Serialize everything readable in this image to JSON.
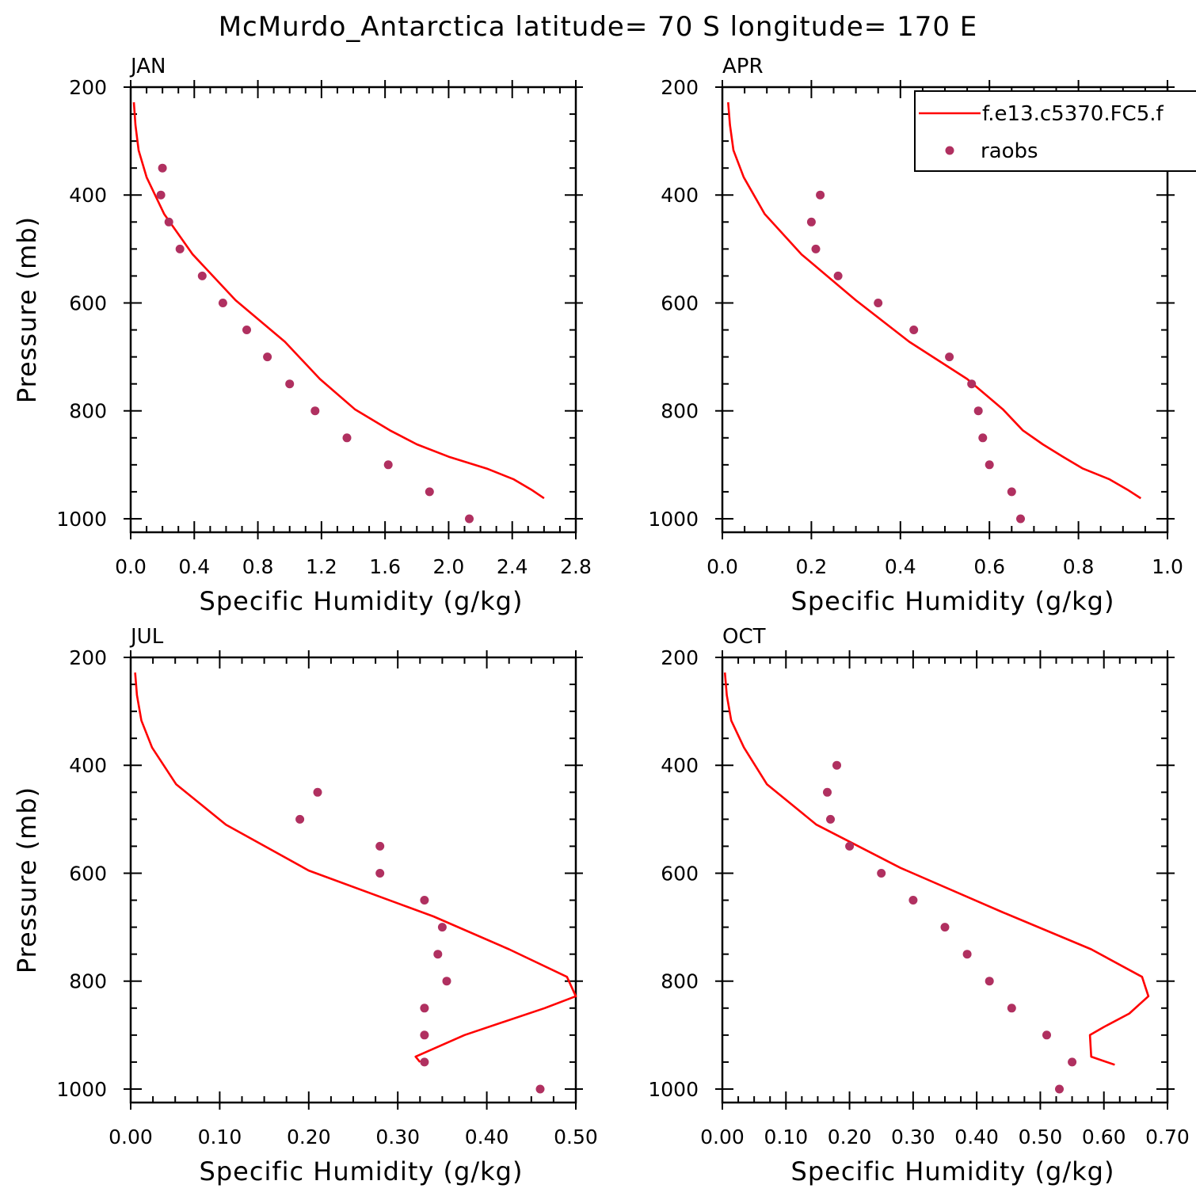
{
  "title": "McMurdo_Antarctica  latitude= 70 S longitude= 170 E",
  "colors": {
    "model": "#ff0000",
    "raobs": "#b03060",
    "axes": "#000000"
  },
  "legend": {
    "placement": "top-right of APR panel",
    "entries": [
      {
        "label": "f.e13.c5370.FC5.f",
        "style": "line"
      },
      {
        "label": "raobs",
        "style": "marker"
      }
    ]
  },
  "chart_data": [
    {
      "type": "line",
      "title": "JAN",
      "xlabel": "Specific Humidity (g/kg)",
      "ylabel": "Pressure (mb)",
      "xlim": [
        0,
        2.8
      ],
      "ylim": [
        1025,
        200
      ],
      "y_inverted": true,
      "xticks": [
        0.0,
        0.4,
        0.8,
        1.2,
        1.6,
        2.0,
        2.4,
        2.8
      ],
      "xtick_labels": [
        "0.0",
        "0.4",
        "0.8",
        "1.2",
        "1.6",
        "2.0",
        "2.4",
        "2.8"
      ],
      "yticks": [
        200,
        400,
        600,
        800,
        1000
      ],
      "ytick_labels": [
        "200",
        "400",
        "600",
        "800",
        "1000"
      ],
      "model": {
        "x": [
          0.02,
          0.03,
          0.05,
          0.1,
          0.21,
          0.39,
          0.66,
          0.97,
          1.19,
          1.41,
          1.63,
          1.8,
          2.0,
          2.24,
          2.41,
          2.52,
          2.6
        ],
        "y": [
          228,
          270,
          317,
          367,
          435,
          510,
          595,
          672,
          741,
          797,
          836,
          862,
          885,
          907,
          927,
          946,
          962
        ]
      },
      "raobs": {
        "x": [
          0.2,
          0.19,
          0.24,
          0.31,
          0.45,
          0.58,
          0.73,
          0.86,
          1.0,
          1.16,
          1.36,
          1.62,
          1.88,
          2.13
        ],
        "y": [
          350,
          400,
          450,
          500,
          550,
          600,
          650,
          700,
          750,
          800,
          850,
          900,
          950,
          1000
        ]
      }
    },
    {
      "type": "line",
      "title": "APR",
      "xlabel": "Specific Humidity (g/kg)",
      "ylabel": "",
      "xlim": [
        0,
        1.0
      ],
      "ylim": [
        1025,
        200
      ],
      "y_inverted": true,
      "xticks": [
        0.0,
        0.2,
        0.4,
        0.6,
        0.8,
        1.0
      ],
      "xtick_labels": [
        "0.0",
        "0.2",
        "0.4",
        "0.6",
        "0.8",
        "1.0"
      ],
      "yticks": [
        200,
        400,
        600,
        800,
        1000
      ],
      "ytick_labels": [
        "200",
        "400",
        "600",
        "800",
        "1000"
      ],
      "model": {
        "x": [
          0.013,
          0.017,
          0.025,
          0.048,
          0.095,
          0.178,
          0.3,
          0.42,
          0.55,
          0.63,
          0.675,
          0.72,
          0.765,
          0.81,
          0.87,
          0.91,
          0.94
        ],
        "y": [
          228,
          270,
          317,
          367,
          435,
          510,
          595,
          672,
          741,
          797,
          836,
          862,
          885,
          907,
          927,
          946,
          962
        ]
      },
      "raobs": {
        "x": [
          0.22,
          0.2,
          0.21,
          0.26,
          0.35,
          0.43,
          0.51,
          0.56,
          0.575,
          0.585,
          0.6,
          0.65,
          0.67
        ],
        "y": [
          400,
          450,
          500,
          550,
          600,
          650,
          700,
          750,
          800,
          850,
          900,
          950,
          1000
        ]
      }
    },
    {
      "type": "line",
      "title": "JUL",
      "xlabel": "Specific Humidity (g/kg)",
      "ylabel": "Pressure (mb)",
      "xlim": [
        0,
        0.5
      ],
      "ylim": [
        1025,
        200
      ],
      "y_inverted": true,
      "xticks": [
        0.0,
        0.1,
        0.2,
        0.3,
        0.4,
        0.5
      ],
      "xtick_labels": [
        "0.00",
        "0.10",
        "0.20",
        "0.30",
        "0.40",
        "0.50"
      ],
      "yticks": [
        200,
        400,
        600,
        800,
        1000
      ],
      "ytick_labels": [
        "200",
        "400",
        "600",
        "800",
        "1000"
      ],
      "model": {
        "x": [
          0.005,
          0.007,
          0.012,
          0.024,
          0.051,
          0.107,
          0.2,
          0.34,
          0.425,
          0.49,
          0.5,
          0.465,
          0.375,
          0.32,
          0.325
        ],
        "y": [
          228,
          270,
          317,
          367,
          435,
          510,
          595,
          680,
          741,
          792,
          828,
          850,
          900,
          940,
          950
        ]
      },
      "raobs": {
        "x": [
          0.21,
          0.19,
          0.28,
          0.28,
          0.33,
          0.35,
          0.345,
          0.355,
          0.33,
          0.33,
          0.33,
          0.46
        ],
        "y": [
          450,
          500,
          550,
          600,
          650,
          700,
          750,
          800,
          850,
          900,
          950,
          1000
        ]
      }
    },
    {
      "type": "line",
      "title": "OCT",
      "xlabel": "Specific Humidity (g/kg)",
      "ylabel": "",
      "xlim": [
        0,
        0.7
      ],
      "ylim": [
        1025,
        200
      ],
      "y_inverted": true,
      "xticks": [
        0.0,
        0.1,
        0.2,
        0.3,
        0.4,
        0.5,
        0.6,
        0.7
      ],
      "xtick_labels": [
        "0.00",
        "0.10",
        "0.20",
        "0.30",
        "0.40",
        "0.50",
        "0.60",
        "0.70"
      ],
      "yticks": [
        200,
        400,
        600,
        800,
        1000
      ],
      "ytick_labels": [
        "200",
        "400",
        "600",
        "800",
        "1000"
      ],
      "model": {
        "x": [
          0.004,
          0.007,
          0.014,
          0.034,
          0.07,
          0.148,
          0.28,
          0.44,
          0.58,
          0.66,
          0.67,
          0.64,
          0.6,
          0.578,
          0.58,
          0.617
        ],
        "y": [
          228,
          270,
          317,
          367,
          435,
          510,
          590,
          672,
          741,
          792,
          828,
          860,
          885,
          900,
          940,
          955
        ]
      },
      "raobs": {
        "x": [
          0.18,
          0.165,
          0.17,
          0.2,
          0.25,
          0.3,
          0.35,
          0.385,
          0.42,
          0.455,
          0.51,
          0.55,
          0.53
        ],
        "y": [
          400,
          450,
          500,
          550,
          600,
          650,
          700,
          750,
          800,
          850,
          900,
          950,
          1000
        ]
      }
    }
  ]
}
